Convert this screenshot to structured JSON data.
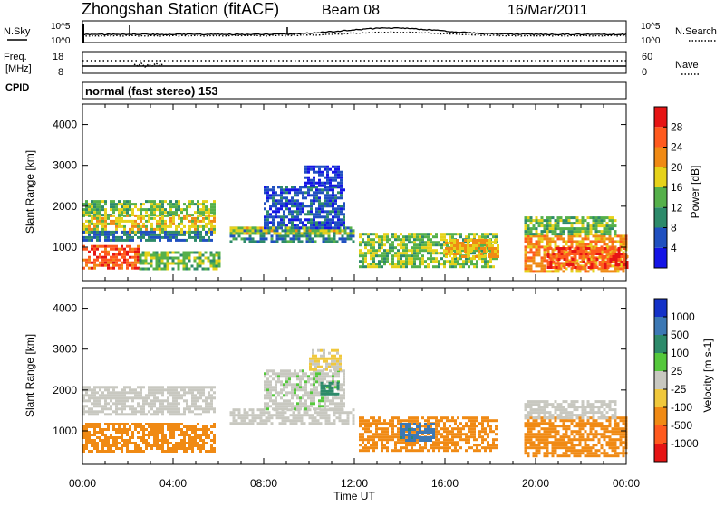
{
  "header": {
    "title": "Zhongshan Station (fitACF)",
    "beam": "Beam 08",
    "date": "16/Mar/2011"
  },
  "nsky_panel": {
    "left_label": "N.Sky",
    "left_ticks": [
      "10^5",
      "10^0"
    ],
    "right_ticks": [
      "10^5",
      "10^0"
    ],
    "right_label": "N.Search"
  },
  "freq_panel": {
    "left_label_1": "Freq.",
    "left_label_2": "[MHz]",
    "left_ticks": [
      "18",
      "8"
    ],
    "right_ticks": [
      "60",
      "0"
    ],
    "right_label": "Nave"
  },
  "cpid_panel": {
    "label": "CPID",
    "text": "normal (fast stereo) 153"
  },
  "colors": {
    "power_scale": [
      "#1414e6",
      "#2050c0",
      "#2d8a6a",
      "#55b04a",
      "#e6d21a",
      "#f08a14",
      "#ff5a1e",
      "#e61414"
    ],
    "velocity_scale": [
      "#1432c8",
      "#3c78b4",
      "#2d8a6a",
      "#55c83c",
      "#c8c8c0",
      "#f0c83c",
      "#f08a14",
      "#ff5a1e",
      "#e61414"
    ]
  },
  "chart_data": [
    {
      "type": "heatmap",
      "name": "power",
      "xlabel": "Time UT",
      "ylabel": "Slant Range [km]",
      "xlim": [
        0,
        24
      ],
      "ylim": [
        180,
        4500
      ],
      "x_ticks": [
        "00:00",
        "04:00",
        "08:00",
        "12:00",
        "16:00",
        "20:00",
        "00:00"
      ],
      "y_ticks": [
        "1000",
        "2000",
        "3000",
        "4000"
      ],
      "colorbar_label": "Power [dB]",
      "colorbar_ticks": [
        "4",
        "8",
        "12",
        "16",
        "20",
        "24",
        "28"
      ],
      "colorbar_range": [
        0,
        32
      ],
      "regions": [
        {
          "t0": 0.0,
          "t1": 5.8,
          "r0": 1800,
          "r1": 2150,
          "v": 14
        },
        {
          "t0": 0.0,
          "t1": 5.8,
          "r0": 1400,
          "r1": 1800,
          "v": 18
        },
        {
          "t0": 0.0,
          "t1": 5.8,
          "r0": 1150,
          "r1": 1400,
          "v": 8
        },
        {
          "t0": 0.0,
          "t1": 2.5,
          "r0": 500,
          "r1": 1050,
          "v": 26
        },
        {
          "t0": 2.5,
          "t1": 6.0,
          "r0": 450,
          "r1": 900,
          "v": 14
        },
        {
          "t0": 6.5,
          "t1": 12.0,
          "r0": 1150,
          "r1": 1500,
          "v": 9
        },
        {
          "t0": 6.5,
          "t1": 12.0,
          "r0": 1350,
          "r1": 1500,
          "v": 17
        },
        {
          "t0": 8.0,
          "t1": 11.5,
          "r0": 1500,
          "r1": 2500,
          "v": 6
        },
        {
          "t0": 9.8,
          "t1": 11.4,
          "r0": 2500,
          "r1": 3000,
          "v": 4
        },
        {
          "t0": 12.2,
          "t1": 18.3,
          "r0": 550,
          "r1": 1350,
          "v": 15
        },
        {
          "t0": 16.0,
          "t1": 18.3,
          "r0": 800,
          "r1": 1200,
          "v": 20
        },
        {
          "t0": 19.5,
          "t1": 24.0,
          "r0": 400,
          "r1": 1300,
          "v": 22
        },
        {
          "t0": 19.5,
          "t1": 23.5,
          "r0": 1350,
          "r1": 1750,
          "v": 14
        },
        {
          "t0": 20.5,
          "t1": 24.0,
          "r0": 500,
          "r1": 1000,
          "v": 27
        }
      ]
    },
    {
      "type": "heatmap",
      "name": "velocity",
      "xlabel": "Time UT",
      "ylabel": "Slant Range [km]",
      "xlim": [
        0,
        24
      ],
      "ylim": [
        180,
        4500
      ],
      "x_ticks": [
        "00:00",
        "04:00",
        "08:00",
        "12:00",
        "16:00",
        "20:00",
        "00:00"
      ],
      "y_ticks": [
        "1000",
        "2000",
        "3000",
        "4000"
      ],
      "colorbar_label": "Velocity [m s-1]",
      "colorbar_ticks": [
        "1000",
        "500",
        "100",
        "25",
        "-25",
        "-100",
        "-500",
        "-1000"
      ],
      "regions": [
        {
          "t0": 0.0,
          "t1": 5.8,
          "r0": 1400,
          "r1": 2100,
          "v": 0
        },
        {
          "t0": 0.0,
          "t1": 5.8,
          "r0": 500,
          "r1": 1200,
          "v": -300
        },
        {
          "t0": 6.5,
          "t1": 12.0,
          "r0": 1200,
          "r1": 1550,
          "v": 0
        },
        {
          "t0": 8.0,
          "t1": 11.5,
          "r0": 1550,
          "r1": 2500,
          "v": 10
        },
        {
          "t0": 10.0,
          "t1": 11.4,
          "r0": 2500,
          "r1": 3000,
          "v": -30
        },
        {
          "t0": 10.5,
          "t1": 11.3,
          "r0": 1900,
          "r1": 2200,
          "v": 200
        },
        {
          "t0": 12.2,
          "t1": 18.3,
          "r0": 550,
          "r1": 1350,
          "v": -300
        },
        {
          "t0": 14.0,
          "t1": 15.5,
          "r0": 800,
          "r1": 1200,
          "v": 700
        },
        {
          "t0": 19.5,
          "t1": 24.0,
          "r0": 400,
          "r1": 1350,
          "v": -300
        },
        {
          "t0": 19.5,
          "t1": 23.5,
          "r0": 1350,
          "r1": 1750,
          "v": 0
        }
      ]
    }
  ]
}
